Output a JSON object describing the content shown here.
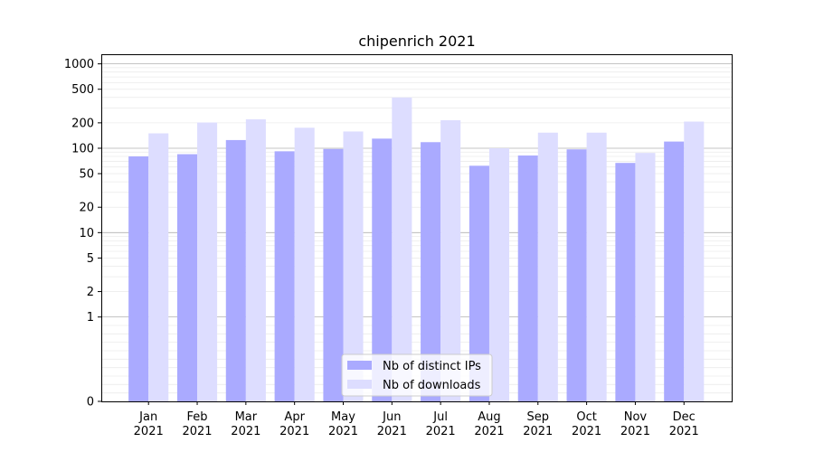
{
  "chart_data": {
    "type": "bar",
    "title": "chipenrich 2021",
    "xlabel": "",
    "ylabel": "",
    "yscale": "symlog",
    "ylim": [
      0,
      1300
    ],
    "yticks": [
      0,
      1,
      2,
      5,
      10,
      20,
      50,
      100,
      200,
      500,
      1000
    ],
    "ytick_labels": [
      "0",
      "1",
      "2",
      "5",
      "10",
      "20",
      "50",
      "100",
      "200",
      "500",
      "1000"
    ],
    "categories": [
      "Jan\n2021",
      "Feb\n2021",
      "Mar\n2021",
      "Apr\n2021",
      "May\n2021",
      "Jun\n2021",
      "Jul\n2021",
      "Aug\n2021",
      "Sep\n2021",
      "Oct\n2021",
      "Nov\n2021",
      "Dec\n2021"
    ],
    "category_lines": [
      [
        "Jan",
        "2021"
      ],
      [
        "Feb",
        "2021"
      ],
      [
        "Mar",
        "2021"
      ],
      [
        "Apr",
        "2021"
      ],
      [
        "May",
        "2021"
      ],
      [
        "Jun",
        "2021"
      ],
      [
        "Jul",
        "2021"
      ],
      [
        "Aug",
        "2021"
      ],
      [
        "Sep",
        "2021"
      ],
      [
        "Oct",
        "2021"
      ],
      [
        "Nov",
        "2021"
      ],
      [
        "Dec",
        "2021"
      ]
    ],
    "series": [
      {
        "name": "Nb of distinct IPs",
        "color": "#aaaaff",
        "values": [
          80,
          85,
          125,
          92,
          98,
          130,
          118,
          62,
          82,
          97,
          67,
          120
        ]
      },
      {
        "name": "Nb of downloads",
        "color": "#ddddff",
        "values": [
          150,
          202,
          220,
          175,
          158,
          400,
          215,
          100,
          153,
          153,
          88,
          207
        ]
      }
    ],
    "grid": true,
    "legend_position": "bottom-center"
  }
}
